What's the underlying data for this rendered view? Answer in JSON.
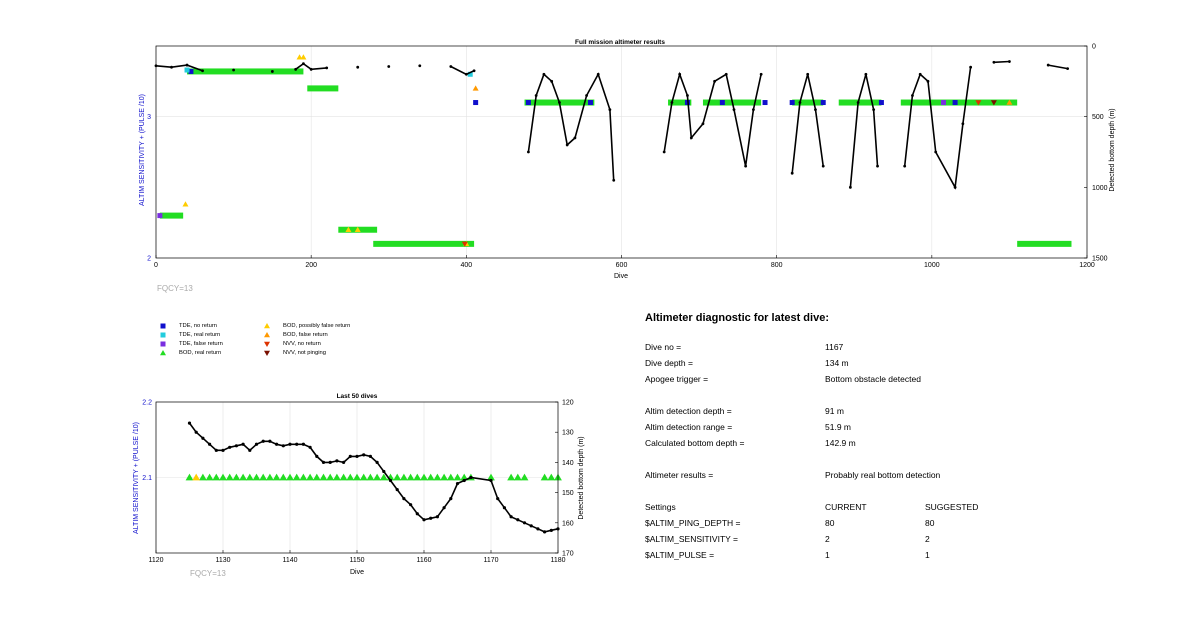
{
  "chart_data": [
    {
      "type": "scatter",
      "title": "Full mission altimeter results",
      "xlabel": "Dive",
      "ylabel_left": "ALTIM SENSITIVITY + (PULSE /10)",
      "ylabel_right": "Detected bottom depth (m)",
      "xlim": [
        0,
        1200
      ],
      "ylim_left": [
        2,
        3.5
      ],
      "ylim_right_reversed": [
        0,
        1500
      ],
      "x_ticks": [
        "0",
        "200",
        "400",
        "600",
        "800",
        "1000",
        "1200"
      ],
      "y_left_ticks": [
        "2",
        "3"
      ],
      "y_right_ticks": [
        "0",
        "500",
        "1000",
        "1500"
      ],
      "annotation": "FQCY=13",
      "grid": true,
      "bottom_depth_profile": [
        [
          0,
          140
        ],
        [
          20,
          150
        ],
        [
          40,
          135
        ],
        [
          60,
          175
        ],
        [
          100,
          170
        ],
        [
          150,
          180
        ],
        [
          180,
          165
        ],
        [
          190,
          125
        ],
        [
          200,
          165
        ],
        [
          220,
          155
        ],
        [
          260,
          150
        ],
        [
          300,
          145
        ],
        [
          340,
          140
        ],
        [
          380,
          145
        ],
        [
          400,
          200
        ],
        [
          410,
          175
        ],
        [
          480,
          750
        ],
        [
          490,
          350
        ],
        [
          500,
          200
        ],
        [
          510,
          250
        ],
        [
          520,
          400
        ],
        [
          530,
          700
        ],
        [
          540,
          650
        ],
        [
          555,
          350
        ],
        [
          570,
          200
        ],
        [
          585,
          450
        ],
        [
          590,
          950
        ],
        [
          655,
          750
        ],
        [
          665,
          400
        ],
        [
          675,
          200
        ],
        [
          685,
          350
        ],
        [
          690,
          650
        ],
        [
          705,
          550
        ],
        [
          720,
          250
        ],
        [
          735,
          200
        ],
        [
          745,
          450
        ],
        [
          760,
          850
        ],
        [
          770,
          450
        ],
        [
          780,
          200
        ],
        [
          820,
          900
        ],
        [
          830,
          400
        ],
        [
          840,
          200
        ],
        [
          850,
          450
        ],
        [
          860,
          850
        ],
        [
          895,
          1000
        ],
        [
          905,
          400
        ],
        [
          915,
          200
        ],
        [
          925,
          450
        ],
        [
          930,
          850
        ],
        [
          965,
          850
        ],
        [
          975,
          350
        ],
        [
          985,
          200
        ],
        [
          995,
          250
        ],
        [
          1005,
          750
        ],
        [
          1030,
          1000
        ],
        [
          1040,
          550
        ],
        [
          1050,
          150
        ],
        [
          1080,
          115
        ],
        [
          1100,
          110
        ],
        [
          1150,
          135
        ],
        [
          1175,
          160
        ]
      ],
      "series": [
        {
          "name": "TDE, no return",
          "color": "#1010cc",
          "marker": "square",
          "points": [
            [
              45,
              3.32
            ],
            [
              412,
              3.1
            ],
            [
              480,
              3.1
            ],
            [
              560,
              3.1
            ],
            [
              685,
              3.1
            ],
            [
              730,
              3.1
            ],
            [
              785,
              3.1
            ],
            [
              820,
              3.1
            ],
            [
              860,
              3.1
            ],
            [
              935,
              3.1
            ],
            [
              1030,
              3.1
            ]
          ]
        },
        {
          "name": "TDE, real return",
          "color": "#22ccdd",
          "marker": "square",
          "points": [
            [
              40,
              3.33
            ],
            [
              405,
              3.3
            ]
          ]
        },
        {
          "name": "TDE, false return",
          "color": "#7a2ee0",
          "marker": "square",
          "points": [
            [
              5,
              2.3
            ],
            [
              1015,
              3.1
            ]
          ]
        },
        {
          "name": "BOD, real return",
          "color": "#22dd22",
          "marker": "triangle-up",
          "bands": [
            [
              5,
              35,
              2.3
            ],
            [
              40,
              190,
              3.32
            ],
            [
              195,
              235,
              3.2
            ],
            [
              235,
              285,
              2.2
            ],
            [
              280,
              410,
              2.1
            ],
            [
              475,
              565,
              3.1
            ],
            [
              660,
              690,
              3.1
            ],
            [
              705,
              780,
              3.1
            ],
            [
              820,
              860,
              3.1
            ],
            [
              880,
              935,
              3.1
            ],
            [
              960,
              1110,
              3.1
            ],
            [
              1110,
              1180,
              2.1
            ]
          ]
        },
        {
          "name": "BOD, possibly false return",
          "color": "#ffcc00",
          "marker": "triangle-up",
          "points": [
            [
              38,
              2.38
            ],
            [
              185,
              3.42
            ],
            [
              190,
              3.42
            ],
            [
              248,
              2.2
            ],
            [
              260,
              2.2
            ],
            [
              400,
              2.1
            ]
          ]
        },
        {
          "name": "BOD, false return",
          "color": "#ff9900",
          "marker": "triangle-up",
          "points": [
            [
              412,
              3.2
            ],
            [
              1100,
              3.1
            ]
          ]
        },
        {
          "name": "NVV, no return",
          "color": "#dd3300",
          "marker": "triangle-down",
          "points": [
            [
              398,
              2.1
            ],
            [
              1060,
              3.1
            ]
          ]
        },
        {
          "name": "NVV, not pinging",
          "color": "#7a1000",
          "marker": "triangle-down",
          "points": [
            [
              1080,
              3.1
            ]
          ]
        }
      ]
    },
    {
      "type": "scatter",
      "title": "Last 50 dives",
      "xlabel": "Dive",
      "ylabel_left": "ALTIM SENSITIVITY + (PULSE /10)",
      "ylabel_right": "Detected bottom depth (m)",
      "xlim": [
        1120,
        1180
      ],
      "ylim_left": [
        2,
        2.2
      ],
      "ylim_right_reversed": [
        120,
        170
      ],
      "x_ticks": [
        "1120",
        "1130",
        "1140",
        "1150",
        "1160",
        "1170",
        "1180"
      ],
      "y_left_ticks": [
        "2.2",
        "2.1"
      ],
      "y_right_ticks": [
        "120",
        "130",
        "140",
        "150",
        "160",
        "170"
      ],
      "annotation": "FQCY=13",
      "grid": true,
      "depth_line": [
        [
          1125,
          127
        ],
        [
          1126,
          130
        ],
        [
          1127,
          132
        ],
        [
          1128,
          134
        ],
        [
          1129,
          136
        ],
        [
          1130,
          136
        ],
        [
          1131,
          135
        ],
        [
          1132,
          134.5
        ],
        [
          1133,
          134
        ],
        [
          1134,
          136
        ],
        [
          1135,
          134
        ],
        [
          1136,
          133
        ],
        [
          1137,
          133
        ],
        [
          1138,
          134
        ],
        [
          1139,
          134.5
        ],
        [
          1140,
          134
        ],
        [
          1141,
          134
        ],
        [
          1142,
          134
        ],
        [
          1143,
          135
        ],
        [
          1144,
          138
        ],
        [
          1145,
          140
        ],
        [
          1146,
          140
        ],
        [
          1147,
          139.5
        ],
        [
          1148,
          140
        ],
        [
          1149,
          138
        ],
        [
          1150,
          138
        ],
        [
          1151,
          137.5
        ],
        [
          1152,
          138
        ],
        [
          1153,
          140
        ],
        [
          1154,
          143
        ],
        [
          1155,
          146
        ],
        [
          1156,
          149
        ],
        [
          1157,
          152
        ],
        [
          1158,
          154
        ],
        [
          1159,
          157
        ],
        [
          1160,
          159
        ],
        [
          1161,
          158.5
        ],
        [
          1162,
          158
        ],
        [
          1163,
          155
        ],
        [
          1164,
          152
        ],
        [
          1165,
          147
        ],
        [
          1166,
          146
        ],
        [
          1167,
          145
        ],
        [
          1170,
          146
        ],
        [
          1171,
          152
        ],
        [
          1172,
          155
        ],
        [
          1173,
          158
        ],
        [
          1174,
          159
        ],
        [
          1175,
          160
        ],
        [
          1176,
          161
        ],
        [
          1177,
          162
        ],
        [
          1178,
          163
        ],
        [
          1179,
          162.5
        ],
        [
          1180,
          162
        ]
      ],
      "series": [
        {
          "name": "BOD, real return",
          "color": "#22dd22",
          "marker": "triangle-up",
          "x": [
            1125,
            1127,
            1128,
            1129,
            1130,
            1131,
            1132,
            1133,
            1134,
            1135,
            1136,
            1137,
            1138,
            1139,
            1140,
            1141,
            1142,
            1143,
            1144,
            1145,
            1146,
            1147,
            1148,
            1149,
            1150,
            1151,
            1152,
            1153,
            1154,
            1155,
            1156,
            1157,
            1158,
            1159,
            1160,
            1161,
            1162,
            1163,
            1164,
            1165,
            1166,
            1167,
            1170,
            1173,
            1174,
            1175,
            1178,
            1179,
            1180
          ]
        },
        {
          "name": "BOD, possibly false return",
          "color": "#ffcc00",
          "marker": "triangle-up",
          "x": [
            1126
          ]
        }
      ]
    }
  ],
  "legend": [
    {
      "label": "TDE, no return",
      "color": "#1010cc",
      "marker": "square"
    },
    {
      "label": "TDE, real return",
      "color": "#22ccdd",
      "marker": "square"
    },
    {
      "label": "TDE, false return",
      "color": "#7a2ee0",
      "marker": "square"
    },
    {
      "label": "BOD, real return",
      "color": "#22dd22",
      "marker": "triangle-up"
    },
    {
      "label": "BOD, possibly false return",
      "color": "#ffcc00",
      "marker": "triangle-up"
    },
    {
      "label": "BOD, false return",
      "color": "#ff9900",
      "marker": "triangle-up"
    },
    {
      "label": "NVV, no return",
      "color": "#dd3300",
      "marker": "triangle-down"
    },
    {
      "label": "NVV, not pinging",
      "color": "#7a1000",
      "marker": "triangle-down"
    }
  ],
  "diagnostic": {
    "title": "Altimeter diagnostic for latest dive:",
    "dive_no_label": "Dive no =",
    "dive_no": "1167",
    "dive_depth_label": "Dive depth =",
    "dive_depth": "134 m",
    "apogee_label": "Apogee trigger =",
    "apogee": "Bottom obstacle detected",
    "det_depth_label": "Altim detection depth =",
    "det_depth": "91 m",
    "det_range_label": "Altim detection range =",
    "det_range": "51.9 m",
    "calc_bottom_label": "Calculated bottom depth =",
    "calc_bottom": "142.9 m",
    "results_label": "Altimeter results =",
    "results": "Probably real bottom detection",
    "settings_label": "Settings",
    "current_label": "CURRENT",
    "suggested_label": "SUGGESTED",
    "settings": [
      {
        "name": "$ALTIM_PING_DEPTH =",
        "current": "80",
        "suggested": "80"
      },
      {
        "name": "$ALTIM_SENSITIVITY =",
        "current": "2",
        "suggested": "2"
      },
      {
        "name": "$ALTIM_PULSE =",
        "current": "1",
        "suggested": "1"
      }
    ]
  }
}
